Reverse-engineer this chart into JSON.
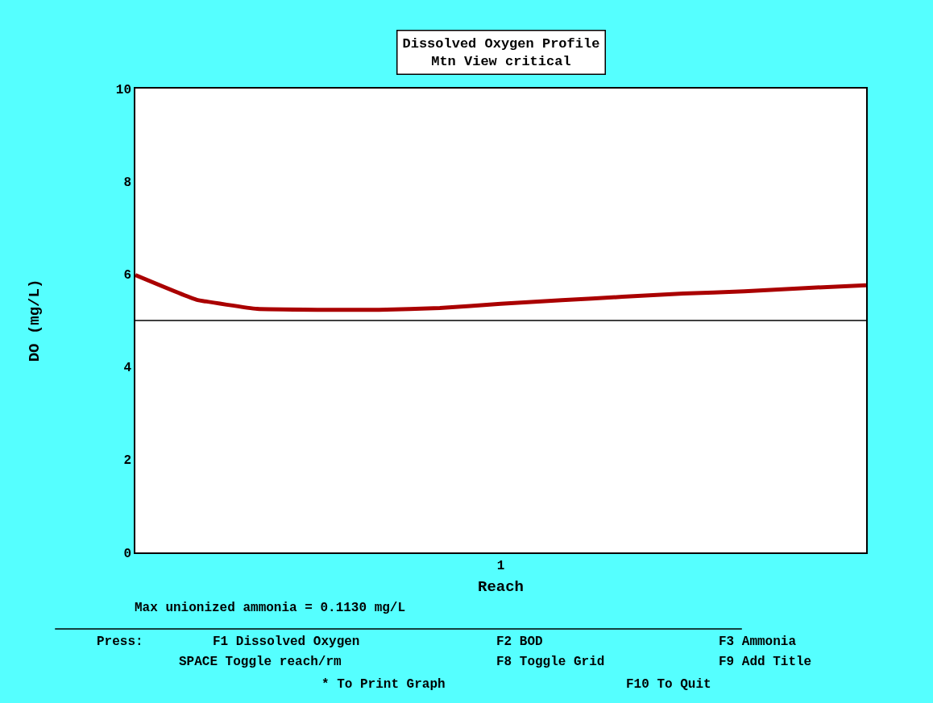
{
  "chart_data": {
    "type": "line",
    "title": "Dissolved Oxygen Profile",
    "subtitle": "Mtn View critical",
    "xlabel": "Reach",
    "ylabel": "DO (mg/L)",
    "categories": [
      null,
      null,
      null,
      null,
      null,
      null,
      "1",
      null,
      null,
      null,
      null,
      null,
      null
    ],
    "series": [
      {
        "color": "#aa0000",
        "values": [
          5.98,
          5.45,
          5.25,
          5.23,
          5.23,
          5.27,
          5.36,
          5.44,
          5.51,
          5.58,
          5.63,
          5.7,
          5.76
        ]
      }
    ],
    "ylim": [
      0,
      10
    ],
    "yticks": [
      0,
      2,
      4,
      6,
      8,
      10
    ],
    "marker": "none",
    "line_style": "solid",
    "ref_lines": [
      {
        "axis": "y",
        "value": 5,
        "color": "#000000"
      }
    ],
    "annotations": [
      "Max unionized ammonia = 0.1130 mg/L",
      "Press:",
      "F1 Dissolved Oxygen",
      "F2 BOD",
      "F3 Ammonia",
      "SPACE Toggle reach/rm",
      "F8 Toggle Grid",
      "F9 Add Title",
      "* To Print Graph",
      "F10 To Quit"
    ]
  }
}
